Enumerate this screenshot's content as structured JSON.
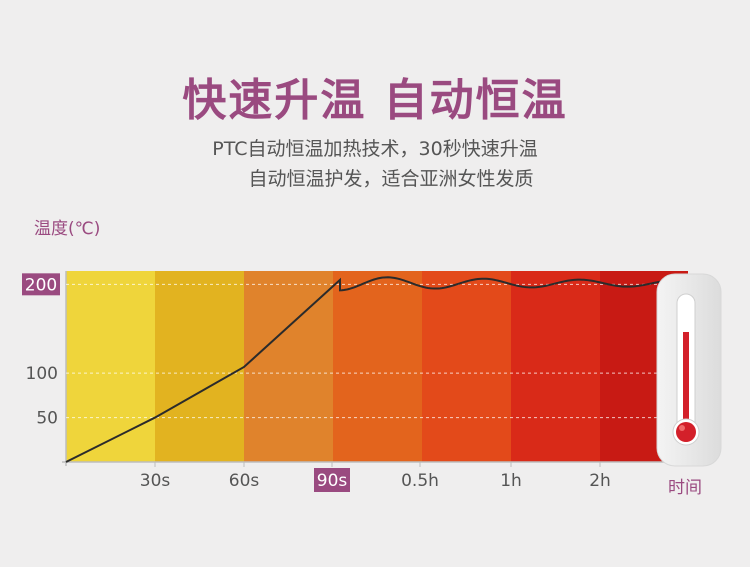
{
  "header": {
    "title": "快速升温 自动恒温",
    "subtitle_line1": "PTC自动恒温加热技术，30秒快速升温",
    "subtitle_line2": "自动恒温护发，适合亚洲女性发质"
  },
  "colors": {
    "title": "#9a4a80",
    "highlight_box": "#9a4a80",
    "band_colors": [
      "#efd53b",
      "#e2b320",
      "#e0832c",
      "#e3641d",
      "#e34a1a",
      "#d92a18",
      "#c81a14",
      "#a8180e"
    ],
    "curve": "#2b2b2b"
  },
  "icons": [
    "thermometer-icon"
  ],
  "chart_data": {
    "type": "line",
    "ylabel": "温度(℃)",
    "xlabel": "时间",
    "y_ticks": [
      "50",
      "100",
      "200"
    ],
    "y_highlight": "200",
    "x_ticks": [
      "30s",
      "60s",
      "90s",
      "0.5h",
      "1h",
      "2h"
    ],
    "x_highlight": "90s",
    "ylim": [
      0,
      215
    ],
    "series": [
      {
        "x": [
          "0",
          "30s",
          "60s",
          "90s",
          "0.5h",
          "1h",
          "2h"
        ],
        "values": [
          0,
          50,
          107,
          200,
          200,
          200,
          200
        ],
        "note_shape": "linear rise to 200 at ~90s, then oscillates around 200"
      }
    ],
    "grid": "dashed horizontal lines at y ticks"
  }
}
